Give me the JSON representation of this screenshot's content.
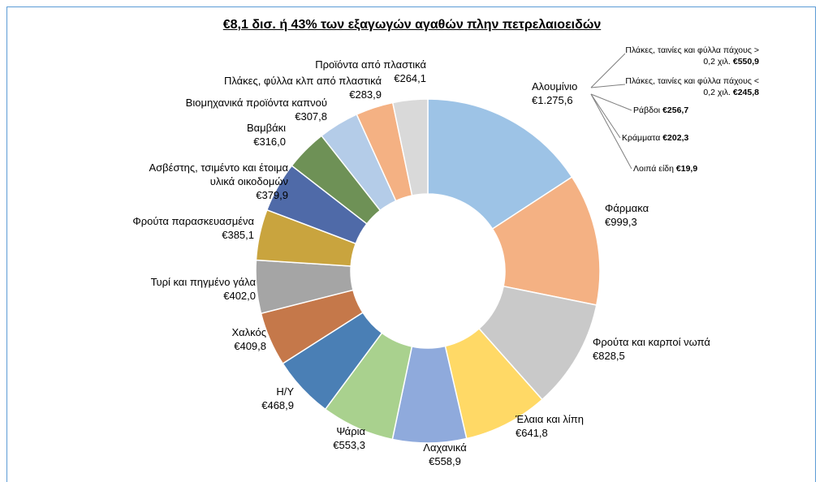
{
  "chart_data": {
    "type": "donut",
    "title": "€8,1 δισ. ή 43% των εξαγωγών αγαθών πλην πετρελαιοειδών",
    "categories": [
      "Αλουμίνιο",
      "Φάρμακα",
      "Φρούτα και καρποί νωπά",
      "Έλαια και λίπη",
      "Λαχανικά",
      "Ψάρια",
      "Η/Υ",
      "Χαλκός",
      "Τυρί και πηγμένο γάλα",
      "Φρούτα παρασκευασμένα",
      "Ασβέστης, τσιμέντο και έτοιμα υλικά οικοδομών",
      "Βαμβάκι",
      "Βιομηχανικά προϊόντα καπνού",
      "Πλάκες, φύλλα κλπ από πλαστικά",
      "Προϊόντα από πλαστικά"
    ],
    "values": [
      1275.6,
      999.3,
      828.5,
      641.8,
      558.9,
      553.3,
      468.9,
      409.8,
      402.0,
      385.1,
      379.9,
      316.0,
      307.8,
      283.9,
      264.1
    ],
    "value_labels": [
      "€1.275,6",
      "€999,3",
      "€828,5",
      "€641,8",
      "€558,9",
      "€553,3",
      "€468,9",
      "€409,8",
      "€402,0",
      "€385,1",
      "€379,9",
      "€316,0",
      "€307,8",
      "€283,9",
      "€264,1"
    ],
    "colors": [
      "#9dc3e6",
      "#f4b183",
      "#c9c9c9",
      "#ffd966",
      "#8faadc",
      "#a9d18e",
      "#4a7fb5",
      "#c5784a",
      "#a5a5a5",
      "#c9a43e",
      "#4f6aa8",
      "#6e9156",
      "#b4cce8",
      "#f4b183",
      "#d9d9d9"
    ],
    "breakdown": {
      "of": "Αλουμίνιο",
      "categories": [
        "Πλάκες, ταινίες και φύλλα πάχους > 0,2 χιλ.",
        "Πλάκες, ταινίες και φύλλα πάχους < 0,2 χιλ.",
        "Ράβδοι",
        "Κράμματα",
        "Λοιπά είδη"
      ],
      "values": [
        550.9,
        245.8,
        256.7,
        202.3,
        19.9
      ],
      "value_labels": [
        "€550,9",
        "€245,8",
        "€256,7",
        "€202,3",
        "€19,9"
      ]
    }
  }
}
